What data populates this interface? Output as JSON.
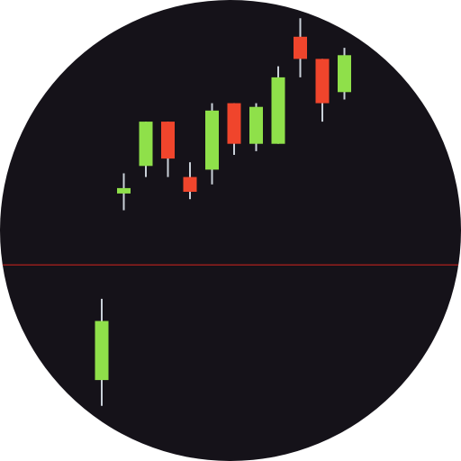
{
  "colors": {
    "background": "#151219",
    "bullish": "#8fe04a",
    "bearish": "#f0452c",
    "wick": "#c9d0d8",
    "reference_line": "#c0221d"
  },
  "chart_data": {
    "type": "candlestick",
    "title": "",
    "xlabel": "",
    "ylabel": "",
    "ylim": [
      0,
      100
    ],
    "grid": false,
    "legend": "none",
    "reference_line": 50.2,
    "candles": [
      {
        "open": 19,
        "close": 35,
        "high": 41,
        "low": 12
      },
      {
        "open": 70,
        "close": 71,
        "high": 75,
        "low": 65
      },
      {
        "open": 77,
        "close": 89,
        "high": 89,
        "low": 74
      },
      {
        "open": 89,
        "close": 79,
        "high": 89,
        "low": 74
      },
      {
        "open": 74,
        "close": 70,
        "high": 78,
        "low": 68
      },
      {
        "open": 76,
        "close": 92,
        "high": 94,
        "low": 72
      },
      {
        "open": 94,
        "close": 83,
        "high": 94,
        "low": 80
      },
      {
        "open": 83,
        "close": 93,
        "high": 94,
        "low": 81
      },
      {
        "open": 83,
        "close": 101,
        "high": 104,
        "low": 83
      },
      {
        "open": 112,
        "close": 106,
        "high": 117,
        "low": 101
      },
      {
        "open": 106,
        "close": 94,
        "high": 106,
        "low": 89
      },
      {
        "open": 97,
        "close": 107,
        "high": 109,
        "low": 95
      }
    ]
  }
}
